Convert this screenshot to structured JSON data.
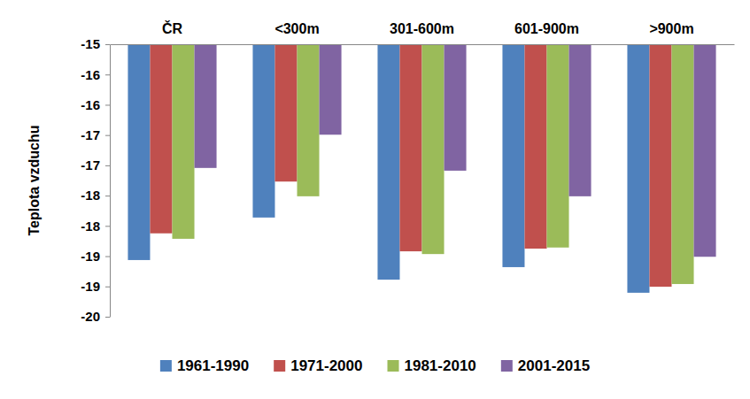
{
  "chart_data": {
    "type": "bar",
    "ylabel": "Teplota vzduchu",
    "categories": [
      "ČR",
      "<300m",
      "301-600m",
      "601-900m",
      ">900m"
    ],
    "series": [
      {
        "name": "1961-1990",
        "color": "#4f81bd",
        "values": [
          -18.96,
          -18.18,
          -19.32,
          -19.09,
          -19.56
        ]
      },
      {
        "name": "1971-2000",
        "color": "#c0504d",
        "values": [
          -18.47,
          -17.52,
          -18.8,
          -18.75,
          -19.45
        ]
      },
      {
        "name": "1981-2010",
        "color": "#9bbb59",
        "values": [
          -18.57,
          -17.79,
          -18.85,
          -18.73,
          -19.4
        ]
      },
      {
        "name": "2001-2015",
        "color": "#8064a2",
        "values": [
          -17.27,
          -16.66,
          -17.32,
          -17.79,
          -18.9
        ]
      }
    ],
    "ylim": [
      -20,
      -15
    ],
    "yticks": [
      -15,
      {
        "value": -15.5556,
        "label": "-16"
      },
      {
        "value": -16.1111,
        "label": "-16"
      },
      {
        "value": -16.6667,
        "label": "-17"
      },
      {
        "value": -17.2222,
        "label": "-17"
      },
      {
        "value": -17.7778,
        "label": "-18"
      },
      {
        "value": -18.3333,
        "label": "-18"
      },
      {
        "value": -18.8889,
        "label": "-19"
      },
      {
        "value": -19.4444,
        "label": "-19"
      },
      -20
    ],
    "grid": false,
    "legend": "bottom"
  }
}
